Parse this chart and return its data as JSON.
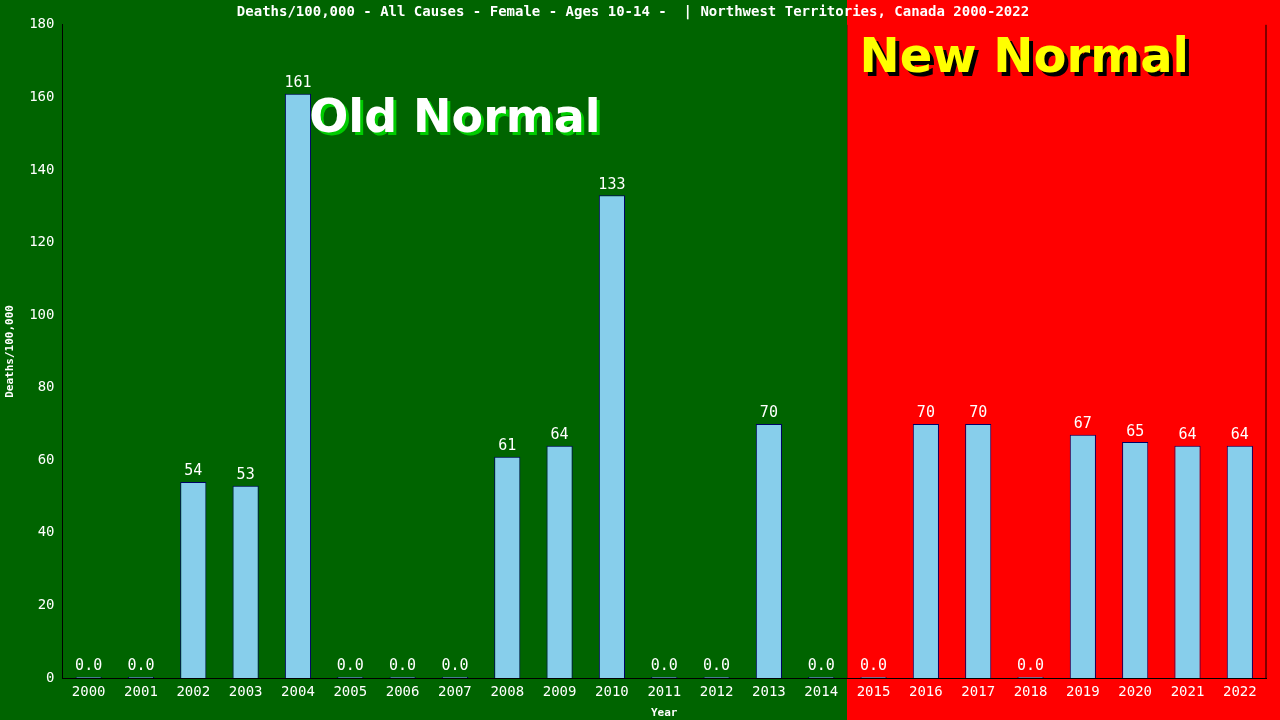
{
  "chart_data": {
    "type": "bar",
    "title": "Deaths/100,000 - All Causes - Female - Ages 10-14 -  | Northwest Territories, Canada 2000-2022",
    "xlabel": "Year",
    "ylabel": "Deaths/100,000",
    "categories": [
      "2000",
      "2001",
      "2002",
      "2003",
      "2004",
      "2005",
      "2006",
      "2007",
      "2008",
      "2009",
      "2010",
      "2011",
      "2012",
      "2013",
      "2014",
      "2015",
      "2016",
      "2017",
      "2018",
      "2019",
      "2020",
      "2021",
      "2022"
    ],
    "values": [
      0,
      0,
      54,
      53,
      161,
      0,
      0,
      0,
      61,
      64,
      133,
      0,
      0,
      70,
      0,
      0,
      70,
      70,
      0,
      67,
      65,
      64,
      64
    ],
    "value_labels": [
      "0.0",
      "0.0",
      "54",
      "53",
      "161",
      "0.0",
      "0.0",
      "0.0",
      "61",
      "64",
      "133",
      "0.0",
      "0.0",
      "70",
      "0.0",
      "0.0",
      "70",
      "70",
      "0.0",
      "67",
      "65",
      "64",
      "64"
    ],
    "color": "#87ceeb",
    "ylim": [
      0,
      180
    ],
    "yticks": [
      0,
      20,
      40,
      60,
      80,
      100,
      120,
      140,
      160,
      180
    ],
    "bands": [
      {
        "axis": "x",
        "from": "2000",
        "to": "2014",
        "label": "Old Normal",
        "color": "#006400"
      },
      {
        "axis": "x",
        "from": "2015",
        "to": "2022",
        "label": "New Normal",
        "color": "#ff0000"
      }
    ],
    "grid": false,
    "legend": false
  }
}
